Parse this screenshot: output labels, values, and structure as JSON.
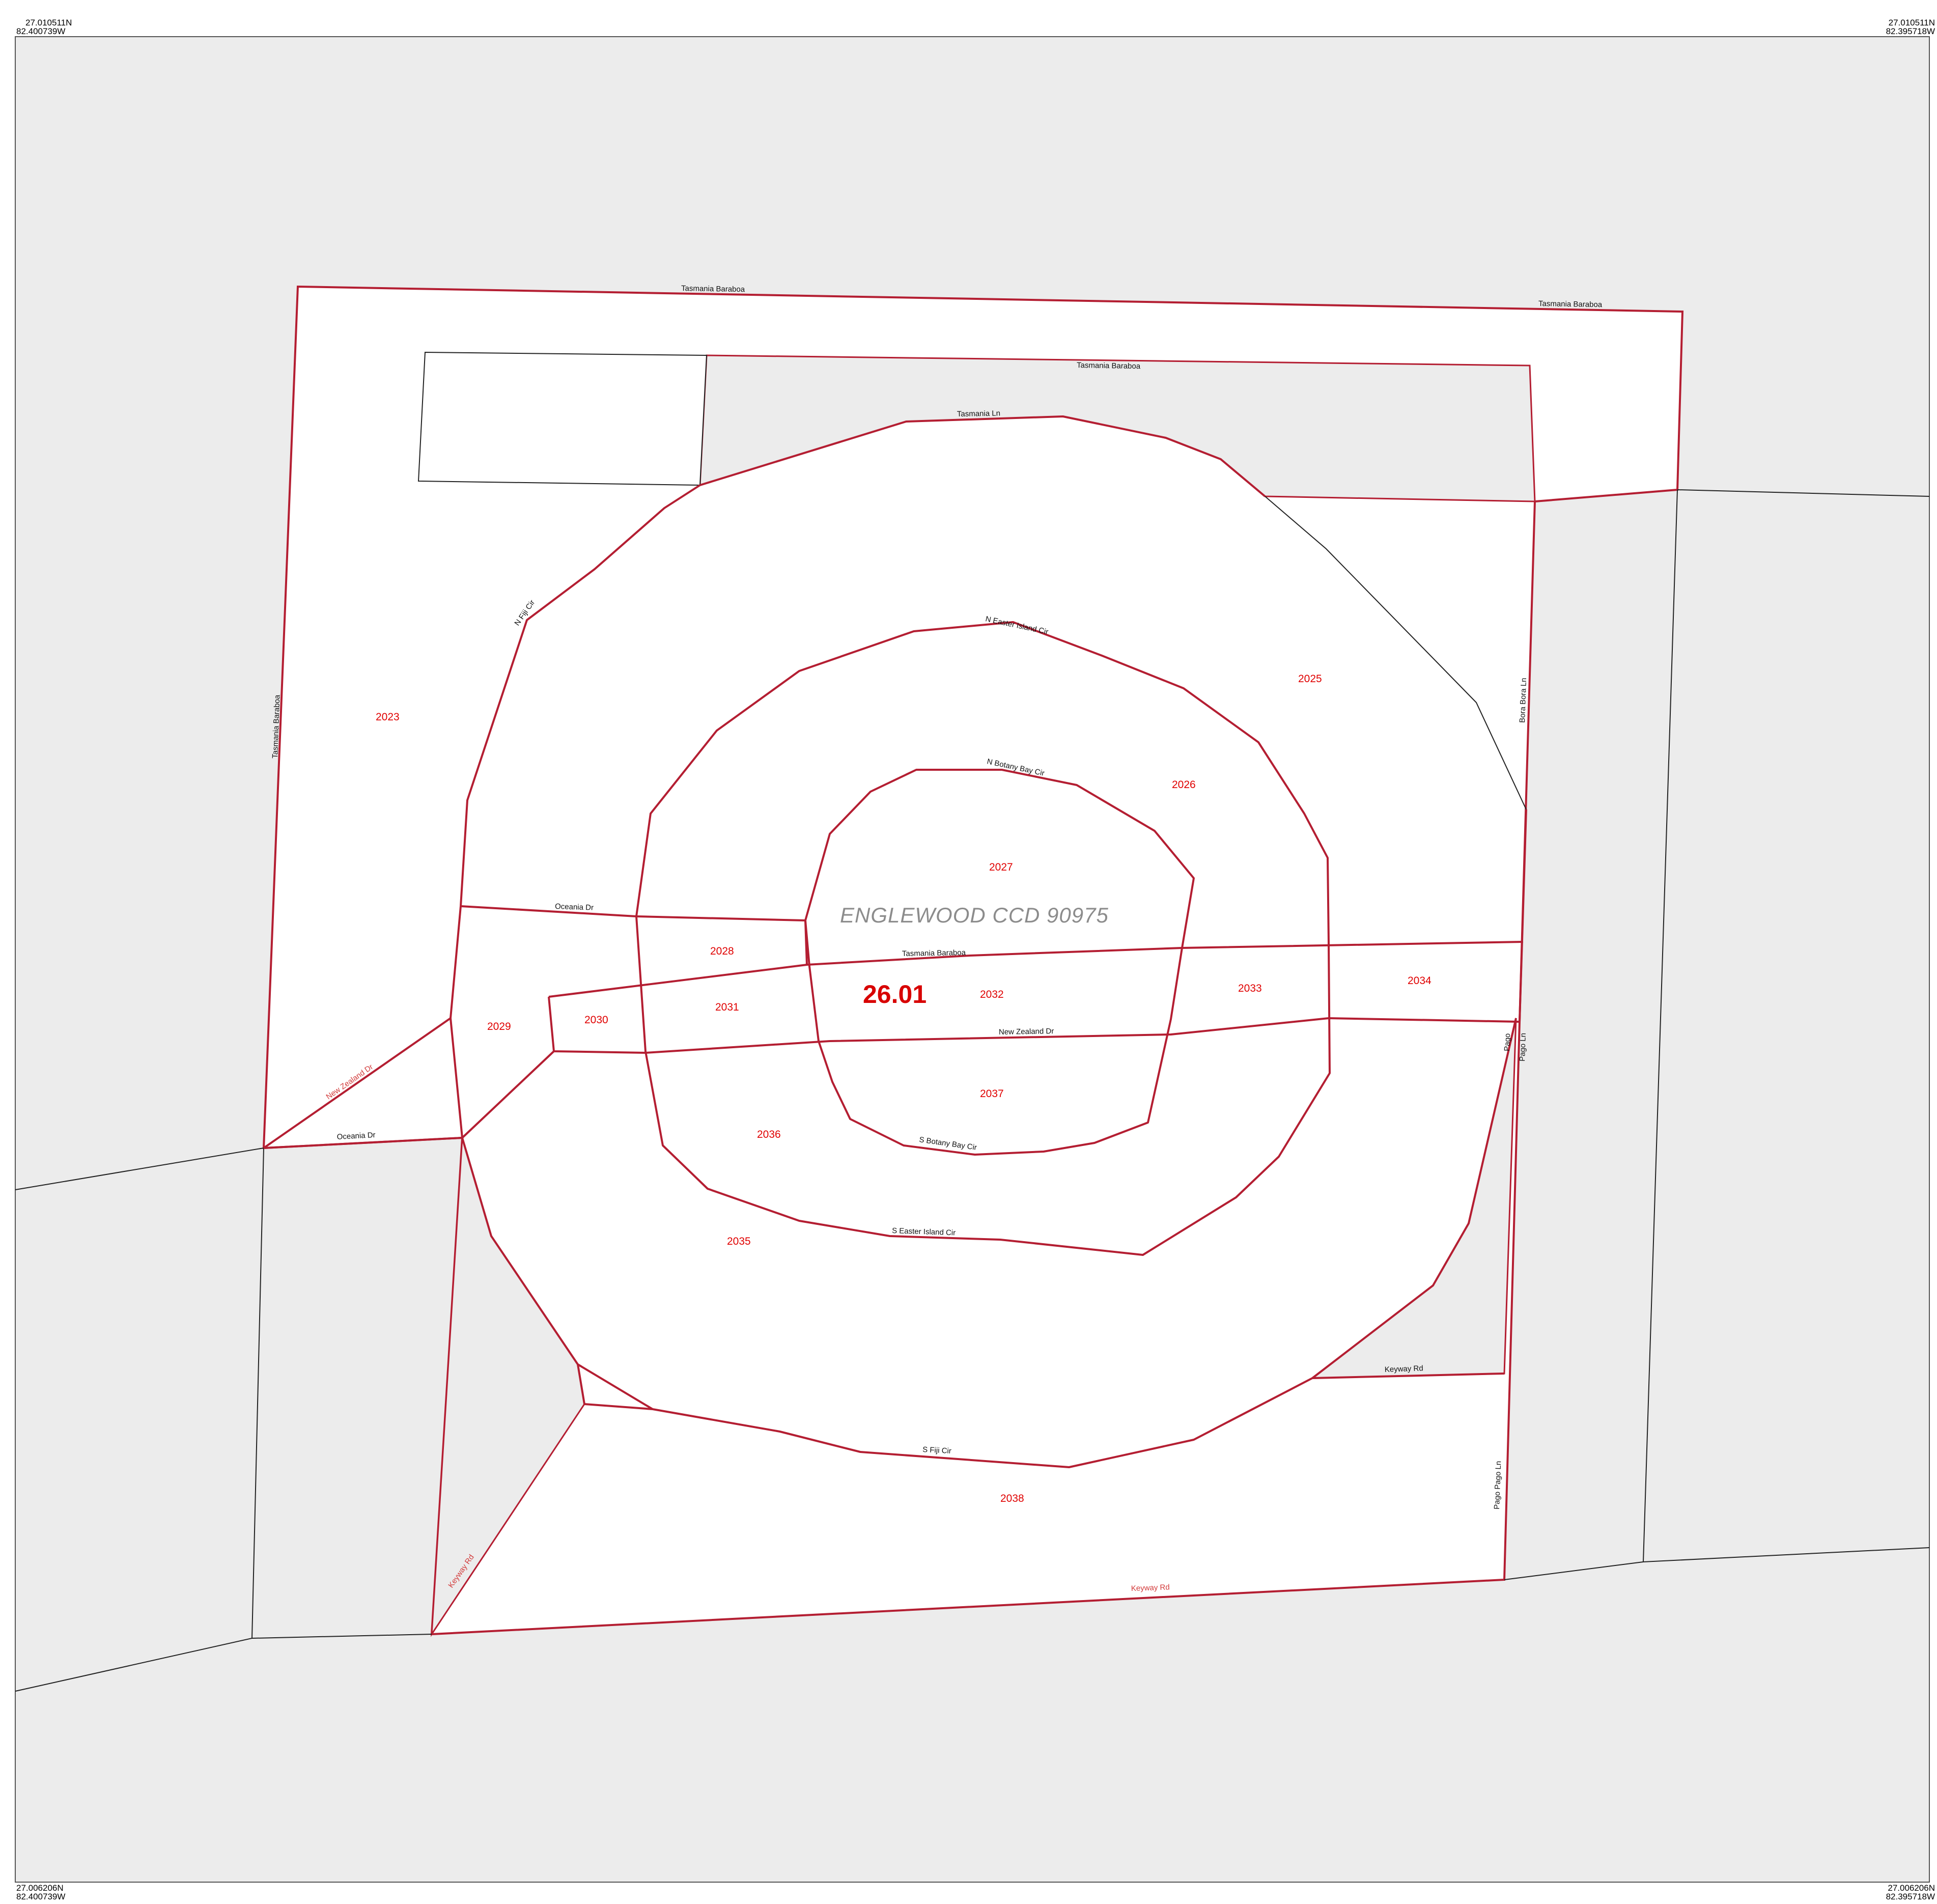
{
  "corners": {
    "top_left": {
      "lat": "27.010511N",
      "lon": "82.400739W"
    },
    "top_right": {
      "lat": "27.010511N",
      "lon": "82.395718W"
    },
    "bottom_left": {
      "lat": "27.006206N",
      "lon": "82.400739W"
    },
    "bottom_right": {
      "lat": "27.006206N",
      "lon": "82.395718W"
    }
  },
  "ccd_label": "ENGLEWOOD CCD 90975",
  "tract_label": "26.01",
  "blocks": [
    "2023",
    "2025",
    "2026",
    "2027",
    "2028",
    "2029",
    "2030",
    "2031",
    "2032",
    "2033",
    "2034",
    "2035",
    "2036",
    "2037",
    "2038"
  ],
  "roads": {
    "tasmania_baraboa": "Tasmania Baraboa",
    "tasmania_ln": "Tasmania Ln",
    "n_fiji_cir": "N Fiji Cir",
    "n_easter_island_cir": "N Easter Island Cir",
    "n_botany_bay_cir": "N Botany Bay Cir",
    "bora_bora_ln": "Bora Bora Ln",
    "oceania_dr": "Oceania Dr",
    "new_zealand_dr": "New Zealand Dr",
    "pago_pago_ln": "Pago Pago Ln",
    "pago": "Pago",
    "pago_ln": "Pago Ln",
    "s_botany_bay_cir": "S Botany Bay Cir",
    "s_easter_island_cir": "S Easter Island Cir",
    "keyway_rd": "Keyway Rd",
    "s_fiji_cir": "S Fiji Cir"
  },
  "colors": {
    "background": "#ececec",
    "tract_fill": "#ffffff",
    "boundary": "#b41e32",
    "label_red": "#e00000",
    "ccd_gray": "#8c8c8c"
  }
}
